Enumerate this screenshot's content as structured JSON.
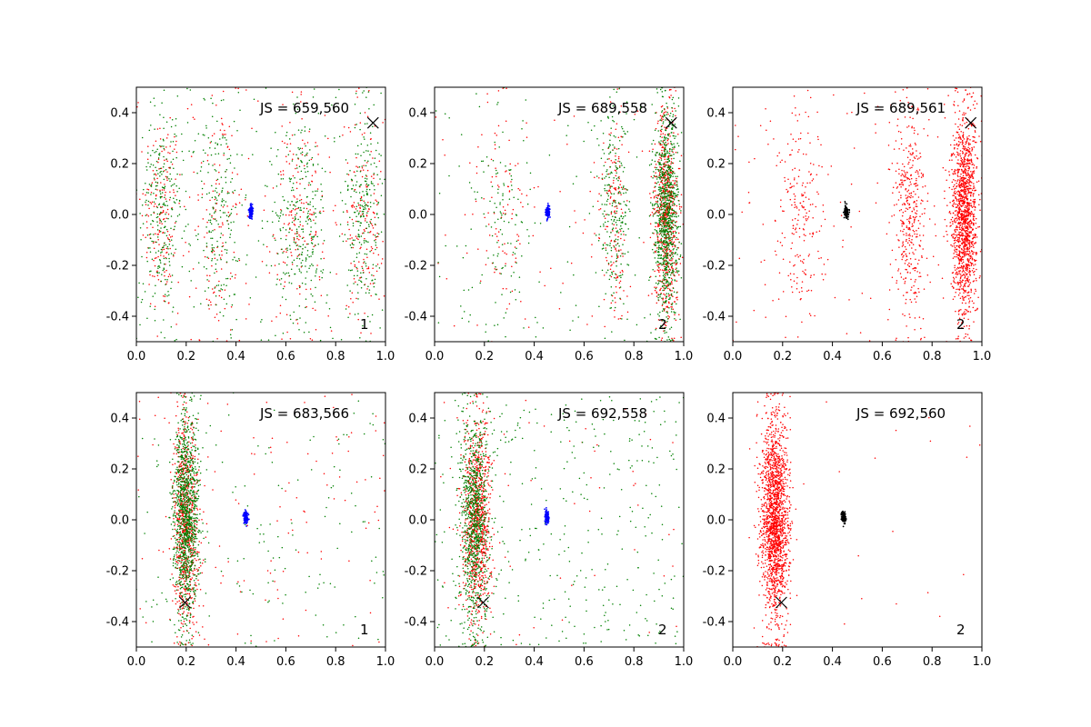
{
  "chart_data": [
    {
      "type": "scatter",
      "title": "",
      "xlabel": "",
      "ylabel": "",
      "xlim": [
        0.0,
        1.0
      ],
      "ylim": [
        -0.5,
        0.5
      ],
      "xticks": [
        "0.0",
        "0.2",
        "0.4",
        "0.6",
        "0.8",
        "1.0"
      ],
      "yticks": [
        "0.4",
        "0.2",
        "0.0",
        "-0.2",
        "-0.4"
      ],
      "annotation": "JS = 659,560",
      "panel_number": "1",
      "series": [
        {
          "name": "red points",
          "color": "#ff0000",
          "clusters": [
            {
              "x": 0.1,
              "y": 0.0,
              "sx": 0.04,
              "sy": 0.2,
              "n": 160
            },
            {
              "x": 0.33,
              "y": 0.0,
              "sx": 0.05,
              "sy": 0.22,
              "n": 120
            },
            {
              "x": 0.66,
              "y": 0.0,
              "sx": 0.05,
              "sy": 0.2,
              "n": 160
            },
            {
              "x": 0.91,
              "y": 0.0,
              "sx": 0.04,
              "sy": 0.2,
              "n": 150
            }
          ],
          "uniform_n": 120
        },
        {
          "name": "green points",
          "color": "#008000",
          "clusters": [
            {
              "x": 0.1,
              "y": 0.0,
              "sx": 0.04,
              "sy": 0.2,
              "n": 240
            },
            {
              "x": 0.33,
              "y": 0.0,
              "sx": 0.05,
              "sy": 0.22,
              "n": 180
            },
            {
              "x": 0.66,
              "y": 0.0,
              "sx": 0.05,
              "sy": 0.2,
              "n": 240
            },
            {
              "x": 0.91,
              "y": 0.0,
              "sx": 0.04,
              "sy": 0.2,
              "n": 220
            }
          ],
          "uniform_n": 200
        },
        {
          "name": "center cluster",
          "color": "#0000ff",
          "clusters": [
            {
              "x": 0.46,
              "y": 0.01,
              "sx": 0.004,
              "sy": 0.012,
              "n": 120
            }
          ],
          "uniform_n": 0
        }
      ],
      "marker_x": {
        "x": 0.95,
        "y": 0.36
      }
    },
    {
      "type": "scatter",
      "title": "",
      "xlabel": "",
      "ylabel": "",
      "xlim": [
        0.0,
        1.0
      ],
      "ylim": [
        -0.5,
        0.5
      ],
      "xticks": [
        "0.0",
        "0.2",
        "0.4",
        "0.6",
        "0.8",
        "1.0"
      ],
      "yticks": [
        "0.4",
        "0.2",
        "0.0",
        "-0.2",
        "-0.4"
      ],
      "annotation": "JS = 689,558",
      "panel_number": "2",
      "series": [
        {
          "name": "red points",
          "color": "#ff0000",
          "clusters": [
            {
              "x": 0.27,
              "y": 0.0,
              "sx": 0.05,
              "sy": 0.2,
              "n": 80
            },
            {
              "x": 0.72,
              "y": 0.0,
              "sx": 0.03,
              "sy": 0.2,
              "n": 160
            },
            {
              "x": 0.93,
              "y": 0.0,
              "sx": 0.025,
              "sy": 0.2,
              "n": 700
            }
          ],
          "uniform_n": 80
        },
        {
          "name": "green points",
          "color": "#008000",
          "clusters": [
            {
              "x": 0.27,
              "y": 0.0,
              "sx": 0.05,
              "sy": 0.2,
              "n": 100
            },
            {
              "x": 0.72,
              "y": 0.0,
              "sx": 0.03,
              "sy": 0.2,
              "n": 240
            },
            {
              "x": 0.93,
              "y": 0.0,
              "sx": 0.025,
              "sy": 0.2,
              "n": 900
            }
          ],
          "uniform_n": 100
        },
        {
          "name": "center cluster",
          "color": "#0000ff",
          "clusters": [
            {
              "x": 0.455,
              "y": 0.01,
              "sx": 0.004,
              "sy": 0.012,
              "n": 120
            }
          ],
          "uniform_n": 0
        }
      ],
      "marker_x": {
        "x": 0.95,
        "y": 0.36
      }
    },
    {
      "type": "scatter",
      "title": "",
      "xlabel": "",
      "ylabel": "",
      "xlim": [
        0.0,
        1.0
      ],
      "ylim": [
        -0.5,
        0.5
      ],
      "xticks": [
        "0.0",
        "0.2",
        "0.4",
        "0.6",
        "0.8",
        "1.0"
      ],
      "yticks": [
        "0.4",
        "0.2",
        "0.0",
        "-0.2",
        "-0.4"
      ],
      "annotation": "JS = 689,561",
      "panel_number": "2",
      "series": [
        {
          "name": "red points",
          "color": "#ff0000",
          "clusters": [
            {
              "x": 0.27,
              "y": 0.0,
              "sx": 0.05,
              "sy": 0.2,
              "n": 200
            },
            {
              "x": 0.71,
              "y": 0.0,
              "sx": 0.03,
              "sy": 0.2,
              "n": 380
            },
            {
              "x": 0.93,
              "y": 0.0,
              "sx": 0.025,
              "sy": 0.2,
              "n": 1400
            }
          ],
          "uniform_n": 120
        },
        {
          "name": "center cluster",
          "color": "#000000",
          "clusters": [
            {
              "x": 0.455,
              "y": 0.01,
              "sx": 0.004,
              "sy": 0.012,
              "n": 120
            }
          ],
          "uniform_n": 0
        }
      ],
      "marker_x": {
        "x": 0.955,
        "y": 0.36
      }
    },
    {
      "type": "scatter",
      "title": "",
      "xlabel": "",
      "ylabel": "",
      "xlim": [
        0.0,
        1.0
      ],
      "ylim": [
        -0.5,
        0.5
      ],
      "xticks": [
        "0.0",
        "0.2",
        "0.4",
        "0.6",
        "0.8",
        "1.0"
      ],
      "yticks": [
        "0.4",
        "0.2",
        "0.0",
        "-0.2",
        "-0.4"
      ],
      "annotation": "JS = 683,566",
      "panel_number": "1",
      "series": [
        {
          "name": "red points",
          "color": "#ff0000",
          "clusters": [
            {
              "x": 0.2,
              "y": 0.0,
              "sx": 0.025,
              "sy": 0.2,
              "n": 800
            }
          ],
          "uniform_n": 120
        },
        {
          "name": "green points",
          "color": "#008000",
          "clusters": [
            {
              "x": 0.2,
              "y": 0.0,
              "sx": 0.025,
              "sy": 0.2,
              "n": 1100
            }
          ],
          "uniform_n": 160
        },
        {
          "name": "center cluster",
          "color": "#0000ff",
          "clusters": [
            {
              "x": 0.44,
              "y": 0.01,
              "sx": 0.004,
              "sy": 0.012,
              "n": 120
            }
          ],
          "uniform_n": 0
        }
      ],
      "marker_x": {
        "x": 0.195,
        "y": -0.325
      }
    },
    {
      "type": "scatter",
      "title": "",
      "xlabel": "",
      "ylabel": "",
      "xlim": [
        0.0,
        1.0
      ],
      "ylim": [
        -0.5,
        0.5
      ],
      "xticks": [
        "0.0",
        "0.2",
        "0.4",
        "0.6",
        "0.8",
        "1.0"
      ],
      "yticks": [
        "0.4",
        "0.2",
        "0.0",
        "-0.2",
        "-0.4"
      ],
      "annotation": "JS = 692,558",
      "panel_number": "2",
      "series": [
        {
          "name": "red points",
          "color": "#ff0000",
          "clusters": [
            {
              "x": 0.17,
              "y": 0.0,
              "sx": 0.028,
              "sy": 0.2,
              "n": 900
            }
          ],
          "uniform_n": 60
        },
        {
          "name": "green points",
          "color": "#008000",
          "clusters": [
            {
              "x": 0.16,
              "y": 0.0,
              "sx": 0.03,
              "sy": 0.2,
              "n": 900
            }
          ],
          "uniform_n": 350
        },
        {
          "name": "center cluster",
          "color": "#0000ff",
          "clusters": [
            {
              "x": 0.45,
              "y": 0.01,
              "sx": 0.004,
              "sy": 0.012,
              "n": 120
            }
          ],
          "uniform_n": 0
        }
      ],
      "marker_x": {
        "x": 0.195,
        "y": -0.325
      }
    },
    {
      "type": "scatter",
      "title": "",
      "xlabel": "",
      "ylabel": "",
      "xlim": [
        0.0,
        1.0
      ],
      "ylim": [
        -0.5,
        0.5
      ],
      "xticks": [
        "0.0",
        "0.2",
        "0.4",
        "0.6",
        "0.8",
        "1.0"
      ],
      "yticks": [
        "0.4",
        "0.2",
        "0.0",
        "-0.2",
        "-0.4"
      ],
      "annotation": "JS = 692,560",
      "panel_number": "2",
      "series": [
        {
          "name": "red points",
          "color": "#ff0000",
          "clusters": [
            {
              "x": 0.17,
              "y": 0.0,
              "sx": 0.028,
              "sy": 0.2,
              "n": 1800
            }
          ],
          "uniform_n": 25
        },
        {
          "name": "center cluster",
          "color": "#000000",
          "clusters": [
            {
              "x": 0.445,
              "y": 0.01,
              "sx": 0.004,
              "sy": 0.012,
              "n": 120
            }
          ],
          "uniform_n": 0
        }
      ],
      "marker_x": {
        "x": 0.195,
        "y": -0.325
      }
    }
  ]
}
